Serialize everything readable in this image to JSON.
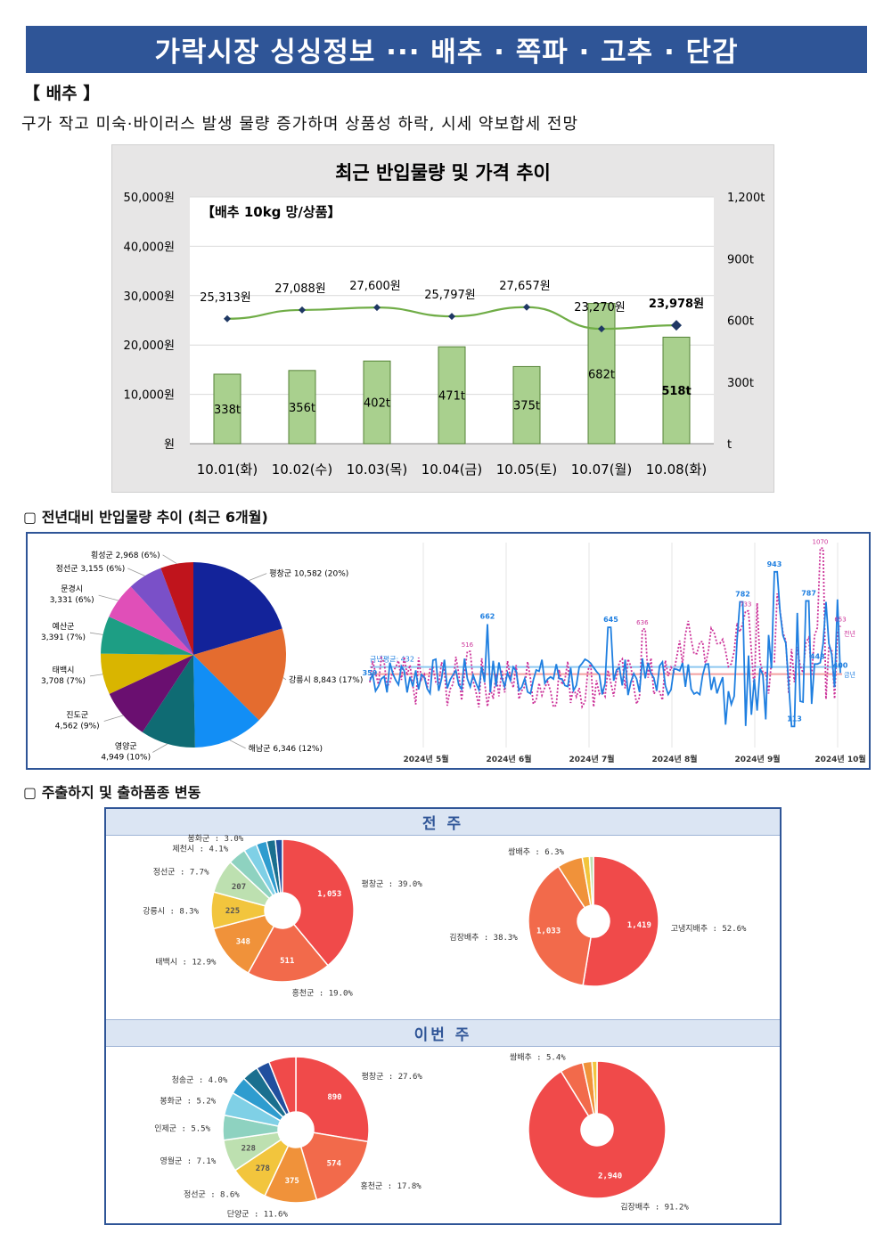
{
  "header": {
    "title": "가락시장 싱싱정보 ··· 배추 · 쪽파 · 고추 · 단감"
  },
  "section": {
    "title": "【 배추 】",
    "summary": "구가 작고 미숙·바이러스 발생 물량 증가하며 상품성 하락, 시세 약보합세 전망"
  },
  "chart_data": [
    {
      "type": "bar+line",
      "title": "최근 반입물량 및 가격 추이",
      "inner_label": "【배추 10kg 망/상품】",
      "categories": [
        "10.01(화)",
        "10.02(수)",
        "10.03(목)",
        "10.04(금)",
        "10.05(토)",
        "10.07(월)",
        "10.08(화)"
      ],
      "volume": {
        "unit": "t",
        "values": [
          338,
          356,
          402,
          471,
          375,
          682,
          518
        ],
        "labels": [
          "338t",
          "356t",
          "402t",
          "471t",
          "375t",
          "682t",
          "518t"
        ],
        "ylim": [
          0,
          1200
        ],
        "ticks": [
          "1,200t",
          "900t",
          "600t",
          "300t",
          "t"
        ]
      },
      "price": {
        "unit": "원",
        "values": [
          25313,
          27088,
          27600,
          25797,
          27657,
          23270,
          23978
        ],
        "labels": [
          "25,313원",
          "27,088원",
          "27,600원",
          "25,797원",
          "27,657원",
          "23,270원",
          "23,978원"
        ],
        "ylim": [
          0,
          50000
        ],
        "ticks": [
          "50,000원",
          "40,000원",
          "30,000원",
          "20,000원",
          "10,000원",
          "원"
        ]
      }
    },
    {
      "type": "pie",
      "slices": [
        {
          "label": "평창군 10,582 (20%)",
          "value": 10582,
          "color": "#13239a"
        },
        {
          "label": "강릉시 8,843 (17%)",
          "value": 8843,
          "color": "#e46c2f"
        },
        {
          "label": "해남군 6,346 (12%)",
          "value": 6346,
          "color": "#128ef5"
        },
        {
          "label": "영양군 4,949 (10%)",
          "value": 4949,
          "color": "#0f6b73"
        },
        {
          "label": "진도군 4,562 (9%)",
          "value": 4562,
          "color": "#6a0f70"
        },
        {
          "label": "태백시 3,708 (7%)",
          "value": 3708,
          "color": "#d9b500"
        },
        {
          "label": "예산군 3,391 (7%)",
          "value": 3391,
          "color": "#1d9e84"
        },
        {
          "label": "문경시 3,331 (6%)",
          "value": 3331,
          "color": "#e04fb8"
        },
        {
          "label": "정선군 3,155 (6%)",
          "value": 3155,
          "color": "#7a50c8"
        },
        {
          "label": "횡성군 2,968 (6%)",
          "value": 2968,
          "color": "#c0141c"
        }
      ]
    },
    {
      "type": "line",
      "months": [
        "2024년 5월",
        "2024년 6월",
        "2024년 7월",
        "2024년 8월",
        "2024년 9월",
        "2024년 10월"
      ],
      "series": [
        {
          "name": "금년",
          "color": "#1f7fe0",
          "avg": 432,
          "avg_label": "금년평균: 432",
          "marks": [
            {
              "label": "359",
              "v": 359
            },
            {
              "label": "662",
              "v": 662
            },
            {
              "label": "645",
              "v": 645
            },
            {
              "label": "782",
              "v": 782
            },
            {
              "label": "943",
              "v": 943
            },
            {
              "label": "787",
              "v": 787
            },
            {
              "label": "448",
              "v": 448
            },
            {
              "label": "113",
              "v": 113
            },
            {
              "label": "400",
              "v": 400
            }
          ]
        },
        {
          "name": "전년",
          "color": "#cc3399",
          "marks": [
            {
              "label": "516",
              "v": 516
            },
            {
              "label": "636",
              "v": 636
            },
            {
              "label": "733",
              "v": 733
            },
            {
              "label": "1070",
              "v": 1070
            },
            {
              "label": "653",
              "v": 653
            }
          ]
        }
      ],
      "ylim": [
        0,
        1100
      ]
    },
    {
      "type": "donut",
      "period": "전 주",
      "slices": [
        {
          "label": "평창군 : 39.0%",
          "inner": "1,053",
          "pct": 39.0,
          "color": "#f04a4a"
        },
        {
          "label": "홍천군 : 19.0%",
          "inner": "511",
          "pct": 19.0,
          "color": "#f26a4b"
        },
        {
          "label": "태백시 : 12.9%",
          "inner": "348",
          "pct": 12.9,
          "color": "#f0923a"
        },
        {
          "label": "강릉시 : 8.3%",
          "inner": "225",
          "pct": 8.3,
          "color": "#f2c53d"
        },
        {
          "label": "정선군 : 7.7%",
          "inner": "207",
          "pct": 7.7,
          "color": "#bde0b0"
        },
        {
          "label": "제천시 : 4.1%",
          "inner": "",
          "pct": 4.1,
          "color": "#8ed2c0"
        },
        {
          "label": "봉화군 : 3.0%",
          "inner": "",
          "pct": 3.0,
          "color": "#7fd0e6"
        },
        {
          "label": "",
          "inner": "",
          "pct": 2.4,
          "color": "#2e9ccf"
        },
        {
          "label": "",
          "inner": "",
          "pct": 2.0,
          "color": "#1a6f8f"
        },
        {
          "label": "",
          "inner": "",
          "pct": 1.6,
          "color": "#214f9e"
        }
      ]
    },
    {
      "type": "donut",
      "period": "전 주",
      "slices": [
        {
          "label": "고냉지배추 : 52.6%",
          "inner": "1,419",
          "pct": 52.6,
          "color": "#f04a4a"
        },
        {
          "label": "김장배추 : 38.3%",
          "inner": "1,033",
          "pct": 38.3,
          "color": "#f26a4b"
        },
        {
          "label": "쌈배추 : 6.3%",
          "inner": "",
          "pct": 6.3,
          "color": "#f0923a"
        },
        {
          "label": "",
          "inner": "",
          "pct": 1.8,
          "color": "#f2c53d"
        },
        {
          "label": "",
          "inner": "",
          "pct": 1.0,
          "color": "#bde0b0"
        }
      ]
    },
    {
      "type": "donut",
      "period": "이번 주",
      "slices": [
        {
          "label": "평창군 : 27.6%",
          "inner": "890",
          "pct": 27.6,
          "color": "#f04a4a"
        },
        {
          "label": "홍천군 : 17.8%",
          "inner": "574",
          "pct": 17.8,
          "color": "#f26a4b"
        },
        {
          "label": "단양군 : 11.6%",
          "inner": "375",
          "pct": 11.6,
          "color": "#f0923a"
        },
        {
          "label": "정선군 : 8.6%",
          "inner": "278",
          "pct": 8.6,
          "color": "#f2c53d"
        },
        {
          "label": "영월군 : 7.1%",
          "inner": "228",
          "pct": 7.1,
          "color": "#bde0b0"
        },
        {
          "label": "인제군 : 5.5%",
          "inner": "",
          "pct": 5.5,
          "color": "#8ed2c0"
        },
        {
          "label": "봉화군 : 5.2%",
          "inner": "",
          "pct": 5.2,
          "color": "#7fd0e6"
        },
        {
          "label": "청송군 : 4.0%",
          "inner": "",
          "pct": 4.0,
          "color": "#2e9ccf"
        },
        {
          "label": "",
          "inner": "",
          "pct": 3.6,
          "color": "#1a6f8f"
        },
        {
          "label": "",
          "inner": "",
          "pct": 3.0,
          "color": "#214f9e"
        },
        {
          "label": "",
          "inner": "",
          "pct": 6.0,
          "color": "#f04a4a"
        }
      ]
    },
    {
      "type": "donut",
      "period": "이번 주",
      "slices": [
        {
          "label": "김장배추 : 91.2%",
          "inner": "2,940",
          "pct": 91.2,
          "color": "#f04a4a"
        },
        {
          "label": "쌈배추 : 5.4%",
          "inner": "",
          "pct": 5.4,
          "color": "#f26a4b"
        },
        {
          "label": "",
          "inner": "",
          "pct": 2.2,
          "color": "#f0923a"
        },
        {
          "label": "",
          "inner": "",
          "pct": 1.2,
          "color": "#f2c53d"
        }
      ]
    }
  ],
  "sections": {
    "yoy_title": "▢ 전년대비 반입물량 추이 (최근 6개월)",
    "ship_title": "▢ 주출하지 및 출하품종 변동",
    "week_prev": "전 주",
    "week_this": "이번 주"
  }
}
